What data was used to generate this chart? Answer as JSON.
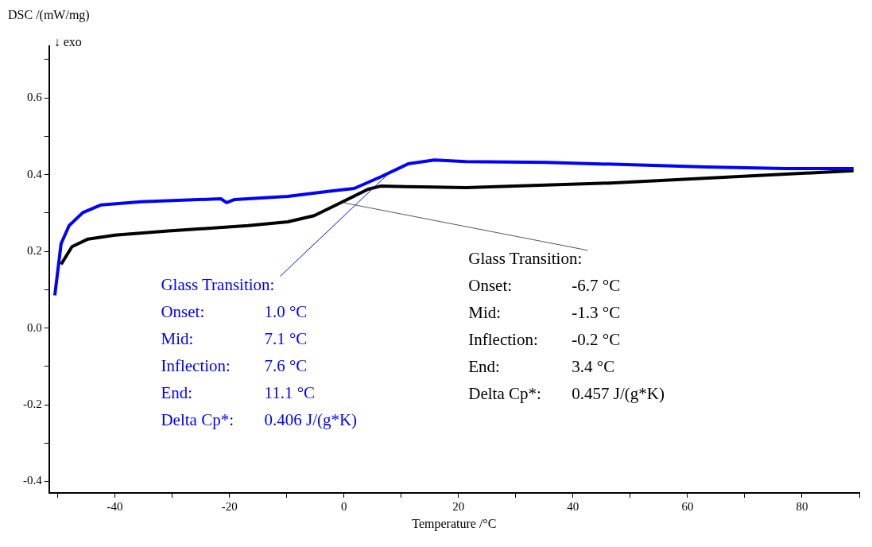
{
  "chart_data": {
    "type": "line",
    "xlabel": "Temperature /°C",
    "ylabel": "DSC /(mW/mg)",
    "xlim": [
      -51.5,
      90
    ],
    "ylim": [
      -0.43,
      0.735
    ],
    "xticks": [
      {
        "value": -50,
        "label": null
      },
      {
        "value": -40,
        "label": "-40"
      },
      {
        "value": -30,
        "label": null
      },
      {
        "value": -20,
        "label": "-20"
      },
      {
        "value": -10,
        "label": null
      },
      {
        "value": 0,
        "label": "0"
      },
      {
        "value": 10,
        "label": null
      },
      {
        "value": 20,
        "label": "20"
      },
      {
        "value": 30,
        "label": null
      },
      {
        "value": 40,
        "label": "40"
      },
      {
        "value": 50,
        "label": null
      },
      {
        "value": 60,
        "label": "60"
      },
      {
        "value": 70,
        "label": null
      },
      {
        "value": 80,
        "label": "80"
      },
      {
        "value": 90,
        "label": null
      }
    ],
    "yticks": [
      {
        "value": -0.4,
        "label": "-0.4"
      },
      {
        "value": -0.3,
        "label": null
      },
      {
        "value": -0.2,
        "label": "-0.2"
      },
      {
        "value": -0.1,
        "label": null
      },
      {
        "value": 0,
        "label": "0.0"
      },
      {
        "value": 0.1,
        "label": null
      },
      {
        "value": 0.2,
        "label": "0.2"
      },
      {
        "value": 0.3,
        "label": null
      },
      {
        "value": 0.4,
        "label": "0.4"
      },
      {
        "value": 0.5,
        "label": null
      },
      {
        "value": 0.6,
        "label": "0.6"
      },
      {
        "value": 0.7,
        "label": null
      }
    ],
    "grid": false,
    "legend": false,
    "series": [
      {
        "color": "#0000ff",
        "x": [
          -50.5,
          -49.4,
          -48.0,
          -45.6,
          -42.4,
          -35.4,
          -21.5,
          -20.5,
          -19.1,
          -9.8,
          -2.8,
          1.8,
          6.4,
          11.2,
          15.8,
          21.3,
          35.3,
          49.3,
          63.2,
          77.2,
          89
        ],
        "values": [
          0.085,
          0.22,
          0.267,
          0.301,
          0.321,
          0.329,
          0.337,
          0.327,
          0.335,
          0.343,
          0.356,
          0.364,
          0.394,
          0.428,
          0.438,
          0.434,
          0.432,
          0.426,
          0.42,
          0.416,
          0.416
        ]
      },
      {
        "color": "#000000",
        "x": [
          -49.4,
          -47.5,
          -44.7,
          -40.0,
          -30.7,
          -16.7,
          -9.8,
          -5.2,
          -0.5,
          4.2,
          6.4,
          13.4,
          21.3,
          46.5,
          89
        ],
        "values": [
          0.166,
          0.212,
          0.232,
          0.242,
          0.253,
          0.267,
          0.277,
          0.293,
          0.327,
          0.362,
          0.37,
          0.368,
          0.366,
          0.378,
          0.41
        ]
      }
    ],
    "annotations": [
      "↓ exo",
      {
        "text": "Glass Transition:",
        "x": 7.6,
        "y": 0.4
      },
      "Onset: 1.0 °C",
      "Mid: 7.1 °C",
      "Inflection: 7.6 °C",
      "End: 11.1 °C",
      "Delta Cp*: 0.406 J/(g*K)",
      {
        "text": "Glass Transition:",
        "x": -0.2,
        "y": 0.327
      },
      "Onset: -6.7 °C",
      "Mid: -1.3 °C",
      "Inflection: -0.2 °C",
      "End: 3.4 °C",
      "Delta Cp*: 0.457 J/(g*K)"
    ]
  }
}
